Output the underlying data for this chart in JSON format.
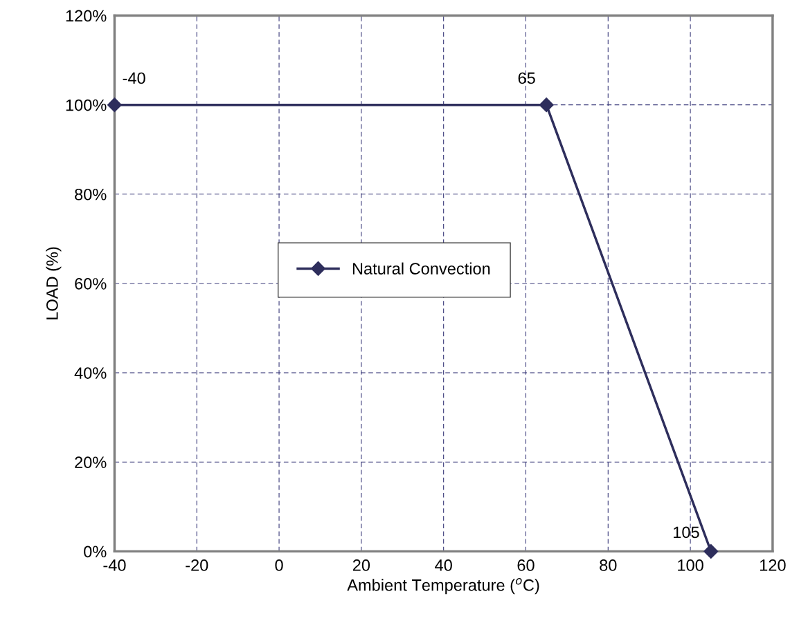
{
  "chart_data": {
    "type": "line",
    "xlabel": "Ambient Temperature ($^{o}$C)",
    "ylabel": "LOAD (%)",
    "x": [
      -40,
      65,
      105
    ],
    "series": [
      {
        "name": "Natural Convection",
        "color": "#2e2e5c",
        "values": [
          100,
          100,
          0
        ]
      }
    ],
    "xlim": [
      -40,
      120
    ],
    "xticks": [
      -40,
      -20,
      0,
      20,
      40,
      60,
      80,
      100,
      120
    ],
    "ylim": [
      0,
      120
    ],
    "yticks": [
      {
        "value": 0,
        "label": "0%"
      },
      {
        "value": 20,
        "label": "20%"
      },
      {
        "value": 40,
        "label": "40%"
      },
      {
        "value": 60,
        "label": "60%"
      },
      {
        "value": 80,
        "label": "80%"
      },
      {
        "value": 100,
        "label": "100%"
      },
      {
        "value": 120,
        "label": "120%"
      }
    ],
    "annotations": [
      {
        "text": "-40",
        "x": -40,
        "y": 100
      },
      {
        "text": "65",
        "x": 65,
        "y": 100
      },
      {
        "text": "105",
        "x": 105,
        "y": 0
      }
    ],
    "grid": true,
    "legend": "center",
    "marker": "diamond",
    "line_style": "solid"
  }
}
